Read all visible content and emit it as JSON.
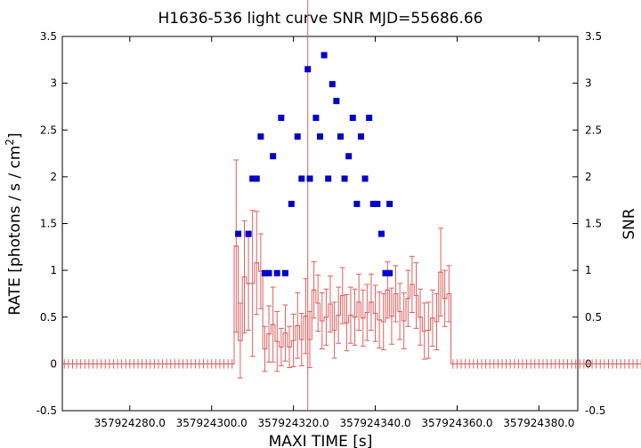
{
  "chart_data": {
    "type": "scatter",
    "title": "H1636-536 light curve  SNR MJD=55686.66",
    "xlabel": "MAXI TIME [s]",
    "ylabel_left_prefix": "RATE [photons / s / cm",
    "ylabel_left_sup": "2",
    "ylabel_left_suffix": "]",
    "ylabel_right": "SNR",
    "xlim": [
      357924263.5,
      357924389.5
    ],
    "ylim": [
      -0.5,
      3.5
    ],
    "x_ticks": [
      357924280,
      357924300,
      357924320,
      357924340,
      357924360,
      357924380
    ],
    "x_tick_labels": [
      "357924280.0",
      "357924300.0",
      "357924320.0",
      "357924340.0",
      "357924360.0",
      "357924380.0"
    ],
    "y_ticks": [
      -0.5,
      0,
      0.5,
      1,
      1.5,
      2,
      2.5,
      3,
      3.5
    ],
    "y_tick_labels": [
      "-0.5",
      "0",
      "0.5",
      "1",
      "1.5",
      "2",
      "2.5",
      "3",
      "3.5"
    ],
    "vertical_line_x": 357924323.5,
    "colors": {
      "rate": "#e06060",
      "snr": "#0000cc",
      "vline": "#e06060",
      "axes": "#000000"
    },
    "rate_series": {
      "name": "",
      "x_start": 357924264.0,
      "x_step": 1.0,
      "y": [
        0,
        0,
        0,
        0,
        0,
        0,
        0,
        0,
        0,
        0,
        0,
        0,
        0,
        0,
        0,
        0,
        0,
        0,
        0,
        0,
        0,
        0,
        0,
        0,
        0,
        0,
        0,
        0,
        0,
        0,
        0,
        0,
        0,
        0,
        0,
        0,
        0,
        0,
        0,
        0,
        0,
        0,
        1.26,
        0.25,
        0.93,
        0.86,
        0.86,
        1.08,
        0.99,
        0.16,
        0.32,
        0.42,
        0.24,
        0.18,
        0.33,
        0.18,
        0.25,
        0.41,
        0.26,
        0.51,
        0.26,
        0.79,
        0.65,
        0.46,
        0.5,
        0.64,
        0.36,
        0.52,
        0.73,
        0.44,
        0.52,
        0.5,
        0.66,
        0.49,
        0.55,
        0.66,
        0.54,
        0.47,
        0.45,
        0.79,
        0.51,
        0.75,
        0.56,
        0.46,
        0.7,
        0.85,
        0.73,
        0.5,
        0.35,
        0.36,
        0.49,
        0.45,
        0.98,
        0.7,
        0.75,
        0,
        0,
        0,
        0,
        0,
        0,
        0,
        0,
        0,
        0,
        0,
        0,
        0,
        0,
        0,
        0,
        0,
        0,
        0,
        0,
        0,
        0,
        0,
        0,
        0,
        0,
        0,
        0,
        0,
        0,
        0,
        0,
        0,
        0,
        0,
        0,
        0,
        0,
        0,
        0,
        0,
        0,
        0,
        0,
        0,
        0,
        0,
        0
      ],
      "err": [
        0.05,
        0.05,
        0.05,
        0.05,
        0.05,
        0.05,
        0.05,
        0.05,
        0.05,
        0.05,
        0.05,
        0.05,
        0.05,
        0.05,
        0.05,
        0.05,
        0.05,
        0.05,
        0.05,
        0.05,
        0.05,
        0.05,
        0.05,
        0.05,
        0.05,
        0.05,
        0.05,
        0.05,
        0.05,
        0.05,
        0.05,
        0.05,
        0.05,
        0.05,
        0.05,
        0.05,
        0.05,
        0.05,
        0.05,
        0.05,
        0.05,
        0.05,
        0.92,
        0.4,
        0.6,
        0.5,
        0.78,
        0.55,
        0.4,
        0.24,
        0.3,
        0.4,
        0.32,
        0.2,
        0.3,
        0.22,
        0.28,
        0.35,
        0.28,
        0.4,
        0.3,
        0.3,
        0.3,
        0.3,
        0.3,
        0.3,
        0.3,
        0.3,
        0.3,
        0.3,
        0.3,
        0.3,
        0.3,
        0.3,
        0.3,
        0.3,
        0.3,
        0.3,
        0.3,
        0.3,
        0.3,
        0.3,
        0.3,
        0.3,
        0.3,
        0.3,
        0.35,
        0.3,
        0.3,
        0.3,
        0.3,
        0.3,
        0.47,
        0.3,
        0.3,
        0.05,
        0.05,
        0.05,
        0.05,
        0.05,
        0.05,
        0.05,
        0.05,
        0.05,
        0.05,
        0.05,
        0.05,
        0.05,
        0.05,
        0.05,
        0.05,
        0.05,
        0.05,
        0.05,
        0.05,
        0.05,
        0.05,
        0.05,
        0.05,
        0.05,
        0.05,
        0.05,
        0.05,
        0.05,
        0.05,
        0.05,
        0.05,
        0.05,
        0.05,
        0.05,
        0.05,
        0.05,
        0.05,
        0.05,
        0.05,
        0.05,
        0.05,
        0.05,
        0.05,
        0.05,
        0.05,
        0.05,
        0.05
      ]
    },
    "snr_series": {
      "name": "",
      "x": [
        357924306.5,
        357924309.0,
        357924310.0,
        357924311.0,
        357924312.0,
        357924313.0,
        357924314.0,
        357924315.0,
        357924316.0,
        357924317.0,
        357924318.0,
        357924319.5,
        357924321.0,
        357924322.0,
        357924323.5,
        357924324.0,
        357924325.5,
        357924326.5,
        357924327.5,
        357924328.5,
        357924329.5,
        357924330.5,
        357924331.5,
        357924332.5,
        357924333.5,
        357924334.5,
        357924335.5,
        357924336.5,
        357924337.5,
        357924338.5,
        357924339.5,
        357924340.5,
        357924341.5,
        357924342.5,
        357924343.5
      ],
      "y": [
        1.39,
        1.39,
        1.98,
        1.98,
        2.43,
        0.97,
        0.97,
        2.22,
        0.97,
        2.63,
        0.97,
        1.71,
        2.43,
        1.98,
        3.15,
        1.98,
        2.63,
        2.43,
        3.3,
        1.98,
        2.99,
        2.81,
        2.43,
        1.98,
        2.22,
        2.63,
        1.71,
        2.43,
        1.98,
        2.63,
        1.71,
        1.71,
        1.39,
        0.97,
        1.71
      ]
    },
    "snr_extra": [
      {
        "x": 357924343.5,
        "y": 0.97
      }
    ]
  }
}
